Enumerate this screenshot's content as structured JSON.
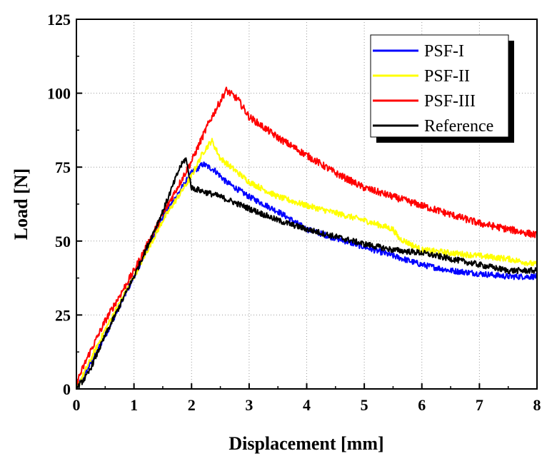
{
  "chart_data": {
    "type": "line",
    "xlabel": "Displacement [mm]",
    "ylabel": "Load [N]",
    "xlim": [
      0,
      8
    ],
    "ylim": [
      0,
      125
    ],
    "xticks": [
      "0",
      "1",
      "2",
      "3",
      "4",
      "5",
      "6",
      "7",
      "8"
    ],
    "yticks": [
      "0",
      "25",
      "50",
      "75",
      "100",
      "125"
    ],
    "grid": true,
    "legend_position": "top-right",
    "series": [
      {
        "name": "PSF-I",
        "color": "#0000ff",
        "noise": 1.0,
        "x": [
          0,
          0.2,
          0.5,
          1.0,
          1.5,
          2.0,
          2.2,
          2.4,
          2.6,
          3.0,
          3.5,
          4.0,
          5.0,
          5.5,
          6.0,
          6.5,
          7.0,
          7.5,
          8.0
        ],
        "y": [
          0,
          7,
          18,
          38,
          58,
          73,
          76,
          74,
          70,
          65,
          60,
          54,
          48,
          45,
          42,
          40,
          39,
          38,
          38
        ]
      },
      {
        "name": "PSF-II",
        "color": "#ffff00",
        "noise": 1.0,
        "x": [
          0,
          0.2,
          0.5,
          1.0,
          1.5,
          2.0,
          2.2,
          2.35,
          2.5,
          3.0,
          3.5,
          4.0,
          5.0,
          5.5,
          5.6,
          6.0,
          6.5,
          7.0,
          7.5,
          8.0
        ],
        "y": [
          0,
          8,
          20,
          38,
          57,
          72,
          80,
          84,
          78,
          70,
          65,
          62,
          57,
          54,
          51,
          47,
          46,
          45,
          44,
          42
        ]
      },
      {
        "name": "PSF-III",
        "color": "#ff0000",
        "noise": 1.2,
        "x": [
          0,
          0.2,
          0.5,
          1.0,
          1.5,
          2.0,
          2.3,
          2.6,
          2.8,
          3.0,
          3.5,
          4.0,
          4.5,
          5.0,
          5.5,
          6.0,
          6.5,
          7.0,
          7.5,
          8.0
        ],
        "y": [
          2,
          11,
          23,
          40,
          59,
          77,
          90,
          101,
          98,
          92,
          85,
          79,
          73,
          68,
          65,
          62,
          59,
          56,
          54,
          52
        ]
      },
      {
        "name": "Reference",
        "color": "#000000",
        "noise": 1.0,
        "x": [
          0,
          0.2,
          0.5,
          1.0,
          1.5,
          1.8,
          1.9,
          2.0,
          2.5,
          3.0,
          3.5,
          4.0,
          5.0,
          5.5,
          6.0,
          6.5,
          7.0,
          7.5,
          8.0
        ],
        "y": [
          0,
          5,
          18,
          38,
          60,
          75,
          78,
          68,
          65,
          61,
          57,
          54,
          49,
          47,
          46,
          44,
          42,
          40,
          40
        ]
      }
    ]
  }
}
